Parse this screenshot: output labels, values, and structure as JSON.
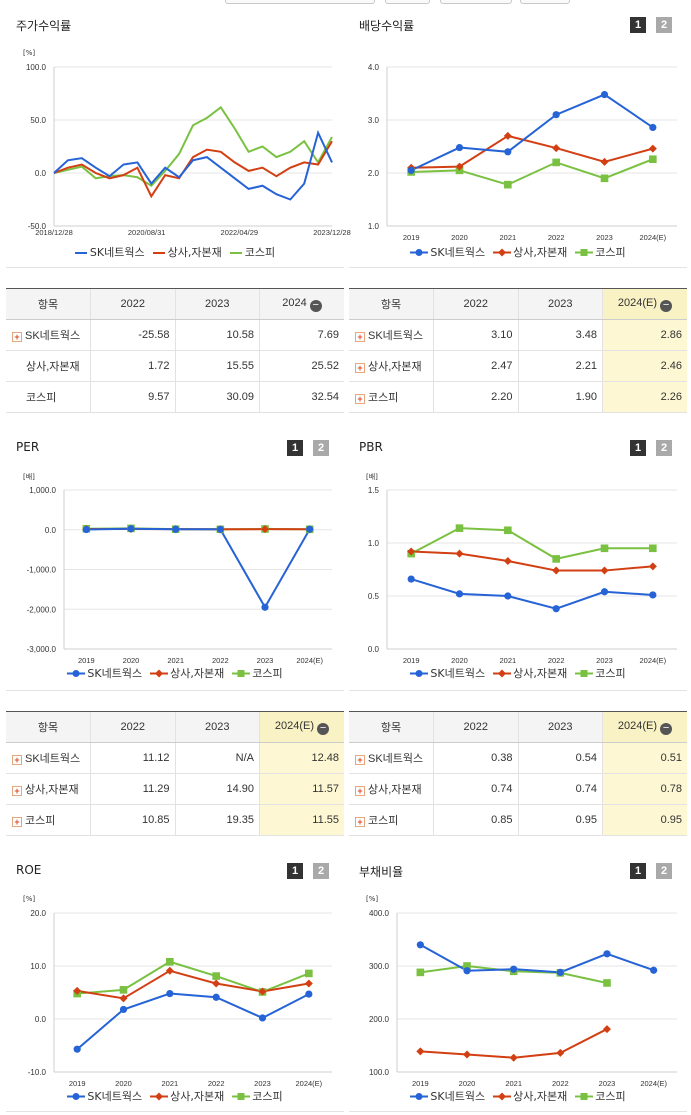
{
  "colors": {
    "sk": "#2563d6",
    "sangsa": "#d23f13",
    "kospi": "#7ac142"
  },
  "series_names": {
    "sk": "SK네트웍스",
    "sangsa": "상사,자본재",
    "kospi": "코스피"
  },
  "page_buttons": [
    "1",
    "2"
  ],
  "panels": {
    "price": {
      "title": "주가수익률",
      "unit": "[%]"
    },
    "div": {
      "title": "배당수익률"
    },
    "per": {
      "title": "PER",
      "unit": "[배]"
    },
    "pbr": {
      "title": "PBR",
      "unit": "[배]"
    },
    "roe": {
      "title": "ROE",
      "unit": "[%]"
    },
    "debt": {
      "title": "부채비율",
      "unit": "[%]"
    }
  },
  "tables": {
    "price": {
      "headers": [
        "항목",
        "2022",
        "2023",
        "2024"
      ],
      "rows": [
        {
          "name": "SK네트웍스",
          "plus": true,
          "values": [
            "-25.58",
            "10.58",
            "7.69"
          ]
        },
        {
          "name": "상사,자본재",
          "plus": false,
          "values": [
            "1.72",
            "15.55",
            "25.52"
          ]
        },
        {
          "name": "코스피",
          "plus": false,
          "values": [
            "9.57",
            "30.09",
            "32.54"
          ]
        }
      ]
    },
    "div": {
      "headers": [
        "항목",
        "2022",
        "2023",
        "2024(E)"
      ],
      "rows": [
        {
          "name": "SK네트웍스",
          "plus": true,
          "values": [
            "3.10",
            "3.48",
            "2.86"
          ]
        },
        {
          "name": "상사,자본재",
          "plus": true,
          "values": [
            "2.47",
            "2.21",
            "2.46"
          ]
        },
        {
          "name": "코스피",
          "plus": true,
          "values": [
            "2.20",
            "1.90",
            "2.26"
          ]
        }
      ]
    },
    "per": {
      "headers": [
        "항목",
        "2022",
        "2023",
        "2024(E)"
      ],
      "rows": [
        {
          "name": "SK네트웍스",
          "plus": true,
          "values": [
            "11.12",
            "N/A",
            "12.48"
          ]
        },
        {
          "name": "상사,자본재",
          "plus": true,
          "values": [
            "11.29",
            "14.90",
            "11.57"
          ]
        },
        {
          "name": "코스피",
          "plus": true,
          "values": [
            "10.85",
            "19.35",
            "11.55"
          ]
        }
      ]
    },
    "pbr": {
      "headers": [
        "항목",
        "2022",
        "2023",
        "2024(E)"
      ],
      "rows": [
        {
          "name": "SK네트웍스",
          "plus": true,
          "values": [
            "0.38",
            "0.54",
            "0.51"
          ]
        },
        {
          "name": "상사,자본재",
          "plus": true,
          "values": [
            "0.74",
            "0.74",
            "0.78"
          ]
        },
        {
          "name": "코스피",
          "plus": true,
          "values": [
            "0.85",
            "0.95",
            "0.95"
          ]
        }
      ]
    }
  },
  "chart_data": [
    {
      "id": "price",
      "type": "line",
      "title": "주가수익률",
      "ylabel": "[%]",
      "ylim": [
        -50,
        100
      ],
      "yticks": [
        "100.0",
        "50.0",
        "0.0",
        "-50.0"
      ],
      "xticks": [
        "2018/12/28",
        "2020/08/31",
        "2022/04/29",
        "2023/12/28"
      ],
      "x": [
        0,
        3,
        6,
        9,
        12,
        15,
        18,
        21,
        24,
        27,
        30,
        33,
        36,
        39,
        42,
        45,
        48,
        51,
        54,
        57,
        60
      ],
      "series": [
        {
          "key": "sk",
          "name": "SK네트웍스",
          "values": [
            0,
            12,
            14,
            5,
            -3,
            8,
            10,
            -10,
            5,
            -4,
            12,
            15,
            5,
            -5,
            -15,
            -12,
            -20,
            -25,
            -10,
            38,
            10
          ]
        },
        {
          "key": "sangsa",
          "name": "상사,자본재",
          "values": [
            0,
            5,
            8,
            0,
            -5,
            -2,
            5,
            -22,
            -2,
            -5,
            15,
            22,
            20,
            10,
            2,
            5,
            -3,
            5,
            10,
            8,
            30
          ]
        },
        {
          "key": "kospi",
          "name": "코스피",
          "values": [
            0,
            3,
            6,
            -5,
            -3,
            -2,
            -4,
            -12,
            2,
            18,
            45,
            52,
            62,
            42,
            20,
            25,
            15,
            20,
            30,
            10,
            34
          ]
        }
      ]
    },
    {
      "id": "div",
      "type": "line",
      "title": "배당수익률",
      "ylim": [
        1,
        4
      ],
      "yticks": [
        "4.0",
        "3.0",
        "2.0",
        "1.0"
      ],
      "categories": [
        "2019",
        "2020",
        "2021",
        "2022",
        "2023",
        "2024(E)"
      ],
      "series": [
        {
          "key": "sk",
          "name": "SK네트웍스",
          "values": [
            2.05,
            2.48,
            2.4,
            3.1,
            3.48,
            2.86
          ]
        },
        {
          "key": "sangsa",
          "name": "상사,자본재",
          "values": [
            2.1,
            2.12,
            2.7,
            2.47,
            2.21,
            2.46
          ]
        },
        {
          "key": "kospi",
          "name": "코스피",
          "values": [
            2.02,
            2.05,
            1.78,
            2.2,
            1.9,
            2.26
          ]
        }
      ]
    },
    {
      "id": "per",
      "type": "line",
      "title": "PER",
      "ylabel": "[배]",
      "ylim": [
        -3000,
        1000
      ],
      "yticks": [
        "1,000.0",
        "0.0",
        "-1,000.0",
        "-2,000.0",
        "-3,000.0"
      ],
      "categories": [
        "2019",
        "2020",
        "2021",
        "2022",
        "2023",
        "2024(E)"
      ],
      "series": [
        {
          "key": "sk",
          "name": "SK네트웍스",
          "values": [
            5,
            25,
            12,
            11.12,
            -1950,
            12.48
          ]
        },
        {
          "key": "sangsa",
          "name": "상사,자본재",
          "values": [
            18,
            20,
            17,
            11.29,
            14.9,
            11.57
          ]
        },
        {
          "key": "kospi",
          "name": "코스피",
          "values": [
            25,
            35,
            15,
            10.85,
            19.35,
            11.55
          ]
        }
      ]
    },
    {
      "id": "pbr",
      "type": "line",
      "title": "PBR",
      "ylabel": "[배]",
      "ylim": [
        0,
        1.5
      ],
      "yticks": [
        "1.5",
        "1.0",
        "0.5",
        "0.0"
      ],
      "categories": [
        "2019",
        "2020",
        "2021",
        "2022",
        "2023",
        "2024(E)"
      ],
      "series": [
        {
          "key": "sk",
          "name": "SK네트웍스",
          "values": [
            0.66,
            0.52,
            0.5,
            0.38,
            0.54,
            0.51
          ]
        },
        {
          "key": "sangsa",
          "name": "상사,자본재",
          "values": [
            0.92,
            0.9,
            0.83,
            0.74,
            0.74,
            0.78
          ]
        },
        {
          "key": "kospi",
          "name": "코스피",
          "values": [
            0.9,
            1.14,
            1.12,
            0.85,
            0.95,
            0.95
          ]
        }
      ]
    },
    {
      "id": "roe",
      "type": "line",
      "title": "ROE",
      "ylabel": "[%]",
      "ylim": [
        -10,
        20
      ],
      "yticks": [
        "20.0",
        "10.0",
        "0.0",
        "-10.0"
      ],
      "categories": [
        "2019",
        "2020",
        "2021",
        "2022",
        "2023",
        "2024(E)"
      ],
      "series": [
        {
          "key": "sk",
          "name": "SK네트웍스",
          "values": [
            -5.7,
            1.8,
            4.8,
            4.1,
            0.2,
            4.7
          ]
        },
        {
          "key": "sangsa",
          "name": "상사,자본재",
          "values": [
            5.3,
            3.9,
            9.1,
            6.7,
            5.2,
            6.7
          ]
        },
        {
          "key": "kospi",
          "name": "코스피",
          "values": [
            4.8,
            5.5,
            10.8,
            8.1,
            5.1,
            8.6
          ]
        }
      ]
    },
    {
      "id": "debt",
      "type": "line",
      "title": "부채비율",
      "ylabel": "[%]",
      "ylim": [
        100,
        400
      ],
      "yticks": [
        "400.0",
        "300.0",
        "200.0",
        "100.0"
      ],
      "categories": [
        "2019",
        "2020",
        "2021",
        "2022",
        "2023",
        "2024(E)"
      ],
      "series": [
        {
          "key": "sk",
          "name": "SK네트웍스",
          "values": [
            340,
            291,
            294,
            288,
            323,
            292
          ]
        },
        {
          "key": "sangsa",
          "name": "상사,자본재",
          "values": [
            139,
            133,
            127,
            136,
            181,
            null
          ]
        },
        {
          "key": "kospi",
          "name": "코스피",
          "values": [
            288,
            300,
            290,
            287,
            268,
            null
          ]
        }
      ]
    }
  ]
}
